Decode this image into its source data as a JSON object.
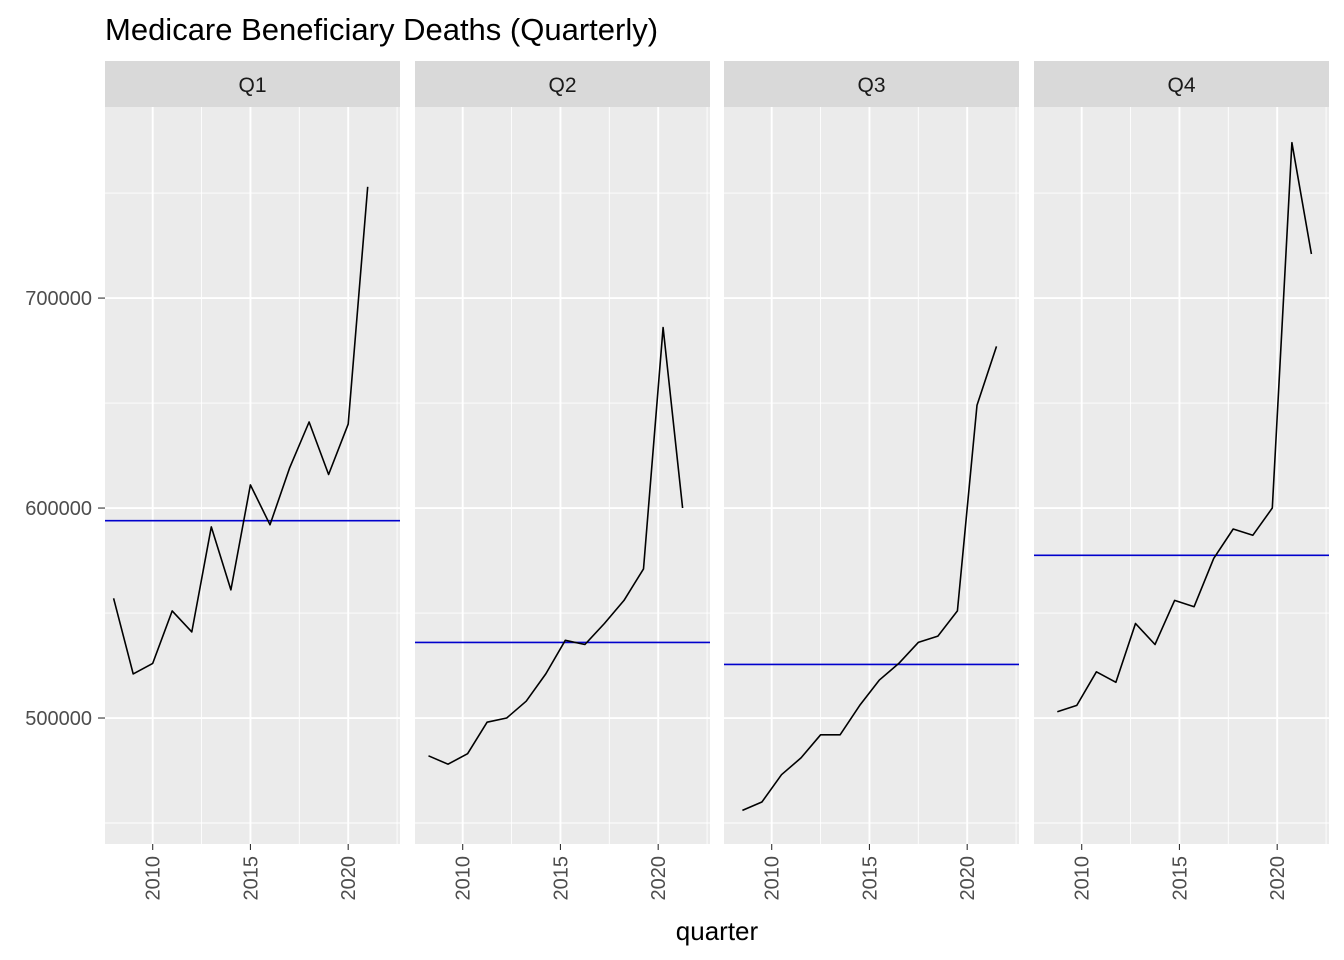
{
  "chart_data": {
    "type": "line",
    "title": "Medicare Beneficiary Deaths (Quarterly)",
    "xlabel": "quarter",
    "ylabel": "",
    "facet_by": "quarter of year",
    "facets": [
      {
        "label": "Q1",
        "x": [
          2008,
          2009,
          2010,
          2011,
          2012,
          2013,
          2014,
          2015,
          2016,
          2017,
          2018,
          2019,
          2020,
          2021
        ],
        "values": [
          557000,
          521000,
          526000,
          551000,
          541000,
          591000,
          561000,
          611000,
          592000,
          619000,
          641000,
          616000,
          640000,
          753000
        ],
        "mean": 594000
      },
      {
        "label": "Q2",
        "x": [
          2008,
          2009,
          2010,
          2011,
          2012,
          2013,
          2014,
          2015,
          2016,
          2017,
          2018,
          2019,
          2020,
          2021
        ],
        "values": [
          482000,
          478000,
          483000,
          498000,
          500000,
          508000,
          521000,
          537000,
          535000,
          545000,
          556000,
          571000,
          686000,
          600000
        ],
        "mean": 536000
      },
      {
        "label": "Q3",
        "x": [
          2008,
          2009,
          2010,
          2011,
          2012,
          2013,
          2014,
          2015,
          2016,
          2017,
          2018,
          2019,
          2020,
          2021
        ],
        "values": [
          456000,
          460000,
          473000,
          481000,
          492000,
          492000,
          506000,
          518000,
          526000,
          536000,
          539000,
          551000,
          649000,
          677000
        ],
        "mean": 525500
      },
      {
        "label": "Q4",
        "x": [
          2008,
          2009,
          2010,
          2011,
          2012,
          2013,
          2014,
          2015,
          2016,
          2017,
          2018,
          2019,
          2020,
          2021
        ],
        "values": [
          503000,
          506000,
          522000,
          517000,
          545000,
          535000,
          556000,
          553000,
          576000,
          590000,
          587000,
          600000,
          774000,
          721000
        ],
        "mean": 577500
      }
    ],
    "x_ticks": [
      2010,
      2015,
      2020
    ],
    "x_tick_labels": [
      "2010",
      "2015",
      "2020"
    ],
    "xlim": [
      2007.56,
      2022.65
    ],
    "y_ticks": [
      500000,
      600000,
      700000
    ],
    "y_tick_labels": [
      "500000",
      "600000",
      "700000"
    ],
    "ylim": [
      440000,
      791000
    ],
    "grid": true,
    "legend": "none",
    "colors": {
      "line": "#000000",
      "mean_line": "#0000cc",
      "panel_background": "#ebebeb",
      "strip_background": "#d9d9d9",
      "grid": "#ffffff"
    }
  }
}
